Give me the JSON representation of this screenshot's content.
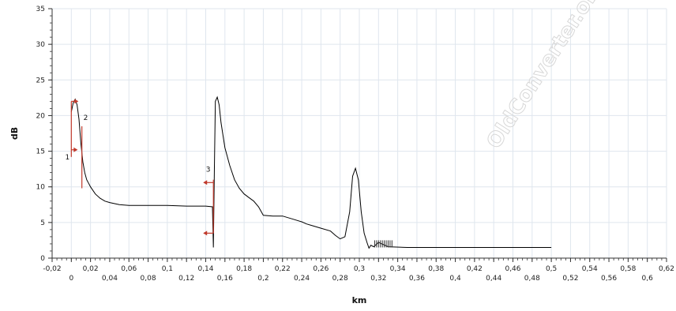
{
  "chart_data": {
    "type": "line",
    "title": "",
    "xlabel": "km",
    "ylabel": "dB",
    "xlim": [
      -0.02,
      0.62
    ],
    "ylim": [
      0,
      35
    ],
    "grid": true,
    "legend": "none",
    "x_ticks": [
      "-0,02",
      "0",
      "0,02",
      "0,04",
      "0,06",
      "0,08",
      "0,1",
      "0,12",
      "0,14",
      "0,16",
      "0,18",
      "0,2",
      "0,22",
      "0,24",
      "0,26",
      "0,28",
      "0,3",
      "0,32",
      "0,34",
      "0,36",
      "0,38",
      "0,4",
      "0,42",
      "0,44",
      "0,46",
      "0,48",
      "0,5",
      "0,52",
      "0,54",
      "0,56",
      "0,58",
      "0,6",
      "0,62"
    ],
    "y_ticks": [
      "0",
      "5",
      "10",
      "15",
      "20",
      "25",
      "30",
      "35"
    ],
    "series": [
      {
        "color": "#000000",
        "x": [
          0.0,
          0.002,
          0.004,
          0.006,
          0.008,
          0.01,
          0.012,
          0.014,
          0.016,
          0.018,
          0.02,
          0.025,
          0.03,
          0.035,
          0.04,
          0.05,
          0.06,
          0.08,
          0.1,
          0.12,
          0.13,
          0.14,
          0.147,
          0.148,
          0.149,
          0.15,
          0.152,
          0.154,
          0.156,
          0.16,
          0.165,
          0.17,
          0.175,
          0.18,
          0.185,
          0.19,
          0.195,
          0.2,
          0.21,
          0.22,
          0.23,
          0.24,
          0.245,
          0.25,
          0.26,
          0.27,
          0.275,
          0.28,
          0.285,
          0.29,
          0.293,
          0.296,
          0.299,
          0.302,
          0.305,
          0.308,
          0.31,
          0.312,
          0.315,
          0.32,
          0.33,
          0.35,
          0.4,
          0.45,
          0.5
        ],
        "y": [
          20.5,
          21.8,
          22.3,
          21.5,
          19.5,
          16.0,
          13.5,
          12.0,
          11.0,
          10.5,
          10.0,
          9.0,
          8.4,
          8.0,
          7.8,
          7.5,
          7.4,
          7.4,
          7.4,
          7.3,
          7.3,
          7.3,
          7.2,
          1.5,
          12.0,
          22.0,
          22.6,
          21.5,
          19.0,
          15.5,
          13.0,
          11.0,
          9.8,
          9.0,
          8.5,
          8.0,
          7.2,
          6.0,
          5.9,
          5.9,
          5.5,
          5.1,
          4.8,
          4.6,
          4.2,
          3.8,
          3.2,
          2.7,
          3.0,
          6.5,
          11.5,
          12.6,
          11.0,
          6.5,
          3.5,
          2.2,
          1.4,
          1.8,
          1.6,
          2.2,
          1.6,
          1.5,
          1.5,
          1.5,
          1.5
        ]
      }
    ],
    "annotations": [
      {
        "label": "1",
        "x": 0.0,
        "y": 15.2
      },
      {
        "label": "2",
        "x": 0.01,
        "y": 19.8
      },
      {
        "label": "3",
        "x": 0.145,
        "y": 12.8
      }
    ]
  },
  "watermark_text": "OldConverter.online"
}
